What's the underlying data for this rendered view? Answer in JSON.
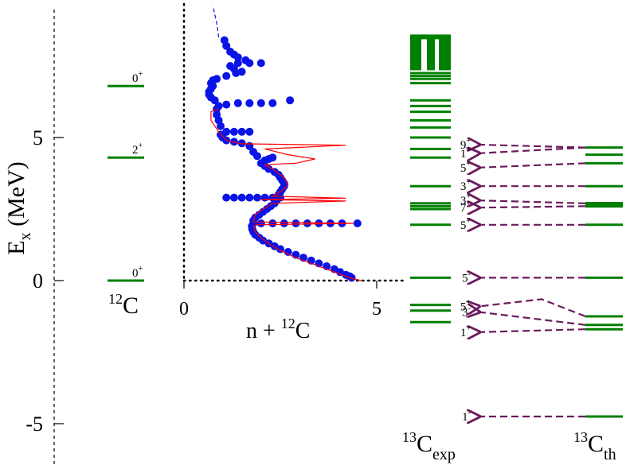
{
  "chart_data": {
    "type": "scatter",
    "ylabel_main": "E",
    "ylabel_sub": "x",
    "ylabel_unit": "(MeV)",
    "yticks": [
      5,
      0,
      -5
    ],
    "ytick_labels": [
      "5",
      "0",
      "-5"
    ],
    "ylim": [
      -5,
      9
    ],
    "colors": {
      "level": "#008000",
      "arrow": "#6b1a5e",
      "points": "#0a14e6",
      "fit": "#ff0000"
    },
    "c12": {
      "name_super": "12",
      "name_base": "C",
      "levels": [
        {
          "energy": 6.8,
          "spin": "0",
          "parity": "+"
        },
        {
          "energy": 4.3,
          "spin": "2",
          "parity": "+"
        },
        {
          "energy": 0.0,
          "spin": "0",
          "parity": "+"
        }
      ]
    },
    "cross_section": {
      "xlabel_prefix": "n + ",
      "xlabel_super": "12",
      "xlabel_base": "C",
      "xticks": [
        0,
        5
      ],
      "xtick_labels": [
        "0",
        "5"
      ],
      "xlim": [
        0,
        5
      ],
      "points": [
        [
          4.35,
          0.1
        ],
        [
          4.3,
          0.15
        ],
        [
          4.2,
          0.2
        ],
        [
          4.05,
          0.3
        ],
        [
          3.9,
          0.4
        ],
        [
          3.7,
          0.5
        ],
        [
          3.5,
          0.6
        ],
        [
          3.3,
          0.7
        ],
        [
          3.1,
          0.8
        ],
        [
          2.9,
          0.9
        ],
        [
          2.7,
          1.0
        ],
        [
          2.5,
          1.1
        ],
        [
          2.35,
          1.2
        ],
        [
          2.2,
          1.3
        ],
        [
          2.05,
          1.4
        ],
        [
          1.95,
          1.5
        ],
        [
          1.85,
          1.6
        ],
        [
          1.8,
          1.7
        ],
        [
          1.77,
          1.8
        ],
        [
          1.76,
          1.9
        ],
        [
          1.8,
          2.0
        ],
        [
          2.0,
          2.0
        ],
        [
          2.3,
          2.0
        ],
        [
          2.6,
          2.0
        ],
        [
          2.9,
          2.0
        ],
        [
          3.2,
          2.0
        ],
        [
          3.5,
          2.0
        ],
        [
          3.8,
          2.0
        ],
        [
          4.1,
          2.0
        ],
        [
          4.5,
          2.0
        ],
        [
          1.8,
          2.1
        ],
        [
          1.85,
          2.2
        ],
        [
          1.95,
          2.3
        ],
        [
          2.05,
          2.4
        ],
        [
          2.15,
          2.5
        ],
        [
          2.25,
          2.6
        ],
        [
          2.35,
          2.7
        ],
        [
          2.4,
          2.8
        ],
        [
          1.1,
          2.9
        ],
        [
          1.3,
          2.9
        ],
        [
          1.5,
          2.9
        ],
        [
          1.7,
          2.9
        ],
        [
          1.9,
          2.9
        ],
        [
          2.1,
          2.9
        ],
        [
          2.3,
          2.9
        ],
        [
          2.5,
          2.9
        ],
        [
          2.45,
          3.0
        ],
        [
          2.5,
          3.1
        ],
        [
          2.55,
          3.2
        ],
        [
          2.6,
          3.3
        ],
        [
          2.6,
          3.4
        ],
        [
          2.55,
          3.5
        ],
        [
          2.5,
          3.6
        ],
        [
          2.45,
          3.7
        ],
        [
          2.35,
          3.8
        ],
        [
          2.2,
          3.9
        ],
        [
          2.1,
          4.0
        ],
        [
          2.0,
          4.1
        ],
        [
          2.1,
          4.2
        ],
        [
          2.2,
          4.25
        ],
        [
          2.3,
          4.3
        ],
        [
          1.9,
          4.35
        ],
        [
          1.8,
          4.5
        ],
        [
          1.7,
          4.7
        ],
        [
          1.5,
          4.8
        ],
        [
          1.3,
          4.85
        ],
        [
          1.1,
          4.9
        ],
        [
          1.0,
          5.0
        ],
        [
          0.95,
          5.1
        ],
        [
          1.1,
          5.2
        ],
        [
          1.3,
          5.2
        ],
        [
          1.5,
          5.2
        ],
        [
          1.7,
          5.2
        ],
        [
          0.95,
          5.4
        ],
        [
          0.9,
          5.6
        ],
        [
          0.85,
          5.8
        ],
        [
          0.85,
          6.0
        ],
        [
          0.9,
          6.1
        ],
        [
          1.1,
          6.15
        ],
        [
          1.4,
          6.2
        ],
        [
          1.7,
          6.2
        ],
        [
          2.0,
          6.2
        ],
        [
          2.3,
          6.2
        ],
        [
          0.8,
          6.3
        ],
        [
          0.7,
          6.4
        ],
        [
          0.65,
          6.5
        ],
        [
          0.65,
          6.6
        ],
        [
          0.7,
          6.7
        ],
        [
          0.75,
          6.8
        ],
        [
          0.7,
          6.9
        ],
        [
          0.75,
          7.0
        ],
        [
          0.85,
          7.05
        ],
        [
          1.1,
          7.15
        ],
        [
          1.35,
          7.25
        ],
        [
          1.5,
          7.3
        ],
        [
          1.3,
          7.4
        ],
        [
          1.2,
          7.5
        ],
        [
          1.4,
          7.6
        ],
        [
          1.7,
          7.6
        ],
        [
          2.0,
          7.6
        ],
        [
          1.6,
          7.7
        ],
        [
          1.4,
          7.8
        ],
        [
          1.3,
          7.9
        ],
        [
          1.2,
          8.0
        ],
        [
          1.1,
          8.2
        ],
        [
          1.05,
          8.4
        ],
        [
          2.75,
          6.3
        ]
      ],
      "fit": [
        [
          4.6,
          0.0
        ],
        [
          4.3,
          0.1
        ],
        [
          3.9,
          0.3
        ],
        [
          3.4,
          0.55
        ],
        [
          2.9,
          0.8
        ],
        [
          2.5,
          1.05
        ],
        [
          2.2,
          1.3
        ],
        [
          2.0,
          1.5
        ],
        [
          1.85,
          1.7
        ],
        [
          1.8,
          1.9
        ],
        [
          1.9,
          1.95
        ],
        [
          4.4,
          2.0
        ],
        [
          1.8,
          2.05
        ],
        [
          1.85,
          2.3
        ],
        [
          2.05,
          2.5
        ],
        [
          2.3,
          2.7
        ],
        [
          4.2,
          2.78
        ],
        [
          2.0,
          2.83
        ],
        [
          4.2,
          2.88
        ],
        [
          2.3,
          2.95
        ],
        [
          2.55,
          3.15
        ],
        [
          2.7,
          3.35
        ],
        [
          2.6,
          3.6
        ],
        [
          2.35,
          3.85
        ],
        [
          2.1,
          4.05
        ],
        [
          2.9,
          4.1
        ],
        [
          3.4,
          4.25
        ],
        [
          2.7,
          4.4
        ],
        [
          2.1,
          4.6
        ],
        [
          4.2,
          4.73
        ],
        [
          1.5,
          4.78
        ],
        [
          1.1,
          4.9
        ],
        [
          0.9,
          5.2
        ],
        [
          0.7,
          5.6
        ],
        [
          0.7,
          5.9
        ],
        [
          0.9,
          6.0
        ]
      ],
      "dashed_tail": [
        [
          0.9,
          8.5
        ],
        [
          0.85,
          9.0
        ],
        [
          0.8,
          9.3
        ],
        [
          0.75,
          9.6
        ]
      ]
    },
    "c13_exp": {
      "name_super": "13",
      "name_base": "C",
      "name_sub": "exp",
      "levels": [
        0.1,
        -0.85,
        -1.05,
        -1.45,
        1.95,
        2.5,
        2.6,
        2.7,
        3.3,
        4.3,
        4.6,
        5.0,
        5.35,
        5.6,
        5.9,
        6.1,
        6.3,
        6.9,
        7.05,
        7.15,
        7.25
      ],
      "band": {
        "from": 7.35,
        "to": 8.6
      }
    },
    "c13_th": {
      "name_super": "13",
      "name_base": "C",
      "name_sub": "th",
      "levels": [
        0.1,
        -1.25,
        -1.55,
        -1.7,
        -4.75,
        1.95,
        2.6,
        2.7,
        3.3,
        4.1,
        4.4,
        4.65
      ],
      "arrows": [
        {
          "from": 4.65,
          "to": 4.75,
          "label_spin": "9",
          "label_parity": "+"
        },
        {
          "from": 4.65,
          "to": 4.45,
          "label_spin": "1",
          "label_parity": "+"
        },
        {
          "from": 4.1,
          "to": 3.95,
          "label_spin": "5",
          "label_parity": "+"
        },
        {
          "from": 3.3,
          "to": 3.3,
          "label_spin": "3",
          "label_parity": "+"
        },
        {
          "from": 2.7,
          "to": 2.8,
          "label_spin": "3",
          "label_parity": "+"
        },
        {
          "from": 2.6,
          "to": 2.55,
          "label_spin": "7",
          "label_parity": "+"
        },
        {
          "from": 1.95,
          "to": 1.95,
          "label_spin": "5",
          "label_parity": "+"
        },
        {
          "from": 0.1,
          "to": 0.1,
          "label_spin": "5",
          "label_parity": "-"
        },
        {
          "from": -1.25,
          "to": -0.9,
          "label_spin": "5",
          "label_parity": "+"
        },
        {
          "from": -1.55,
          "to": -1.1,
          "label_spin": "3",
          "label_parity": "-"
        },
        {
          "from": -1.7,
          "to": -1.8,
          "label_spin": "1",
          "label_parity": "+"
        },
        {
          "from": -4.75,
          "to": -4.75,
          "label_spin": "1",
          "label_parity": "-"
        }
      ]
    }
  }
}
